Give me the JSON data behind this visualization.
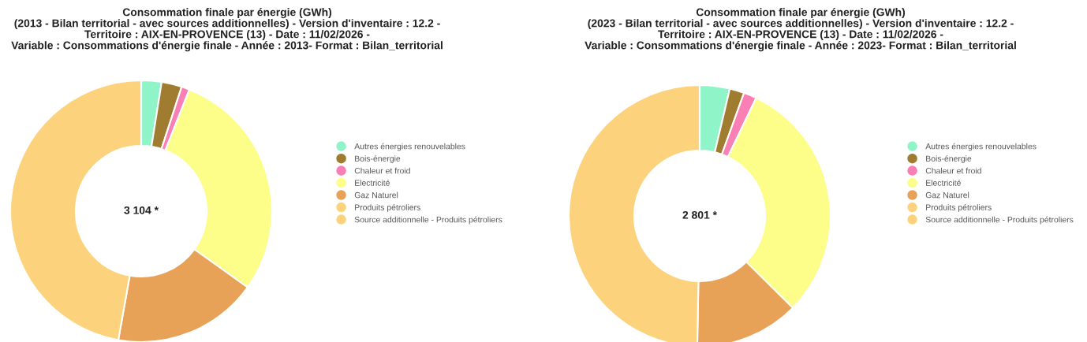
{
  "chart_data": [
    {
      "type": "donut",
      "title": "Consommation finale par énergie (GWh)\n(2013 - Bilan territorial - avec sources additionnelles) - Version d'inventaire : 12.2 -\nTerritoire : AIX-EN-PROVENCE (13) - Date : 11/02/2026 -\nVariable : Consommations d'énergie finale - Année : 2013- Format : Bilan_territorial",
      "categories": [
        "Autres énergies renouvelables",
        "Bois-énergie",
        "Chaleur et froid",
        "Electricité",
        "Gaz Naturel",
        "Produits pétroliers",
        "Source additionnelle - Produits pétroliers"
      ],
      "values": [
        2.5,
        2.5,
        1,
        28.9,
        17.9,
        47.2,
        0
      ],
      "colors": [
        "#8ff5c8",
        "#a07c30",
        "#f97fb5",
        "#fdfd8a",
        "#e8a257",
        "#fcd37c",
        "#fcd37c"
      ],
      "annotations": [
        "3 104 *"
      ],
      "legend": "right"
    },
    {
      "type": "donut",
      "title": "Consommation finale par énergie (GWh)\n(2023 - Bilan territorial - avec sources additionnelles) - Version d'inventaire : 12.2 -\nTerritoire : AIX-EN-PROVENCE (13) - Date : 11/02/2026 -\nVariable : Consommations d'énergie finale - Année : 2023- Format : Bilan_territorial",
      "categories": [
        "Autres énergies renouvelables",
        "Bois-énergie",
        "Chaleur et froid",
        "Electricité",
        "Gaz Naturel",
        "Produits pétroliers",
        "Source additionnelle - Produits pétroliers"
      ],
      "values": [
        3.7,
        1.8,
        1.6,
        30.3,
        12.9,
        49.7,
        0
      ],
      "colors": [
        "#8ff5c8",
        "#a07c30",
        "#f97fb5",
        "#fdfd8a",
        "#e8a257",
        "#fcd37c",
        "#fcd37c"
      ],
      "annotations": [
        "2 801 *"
      ],
      "legend": "right"
    }
  ]
}
